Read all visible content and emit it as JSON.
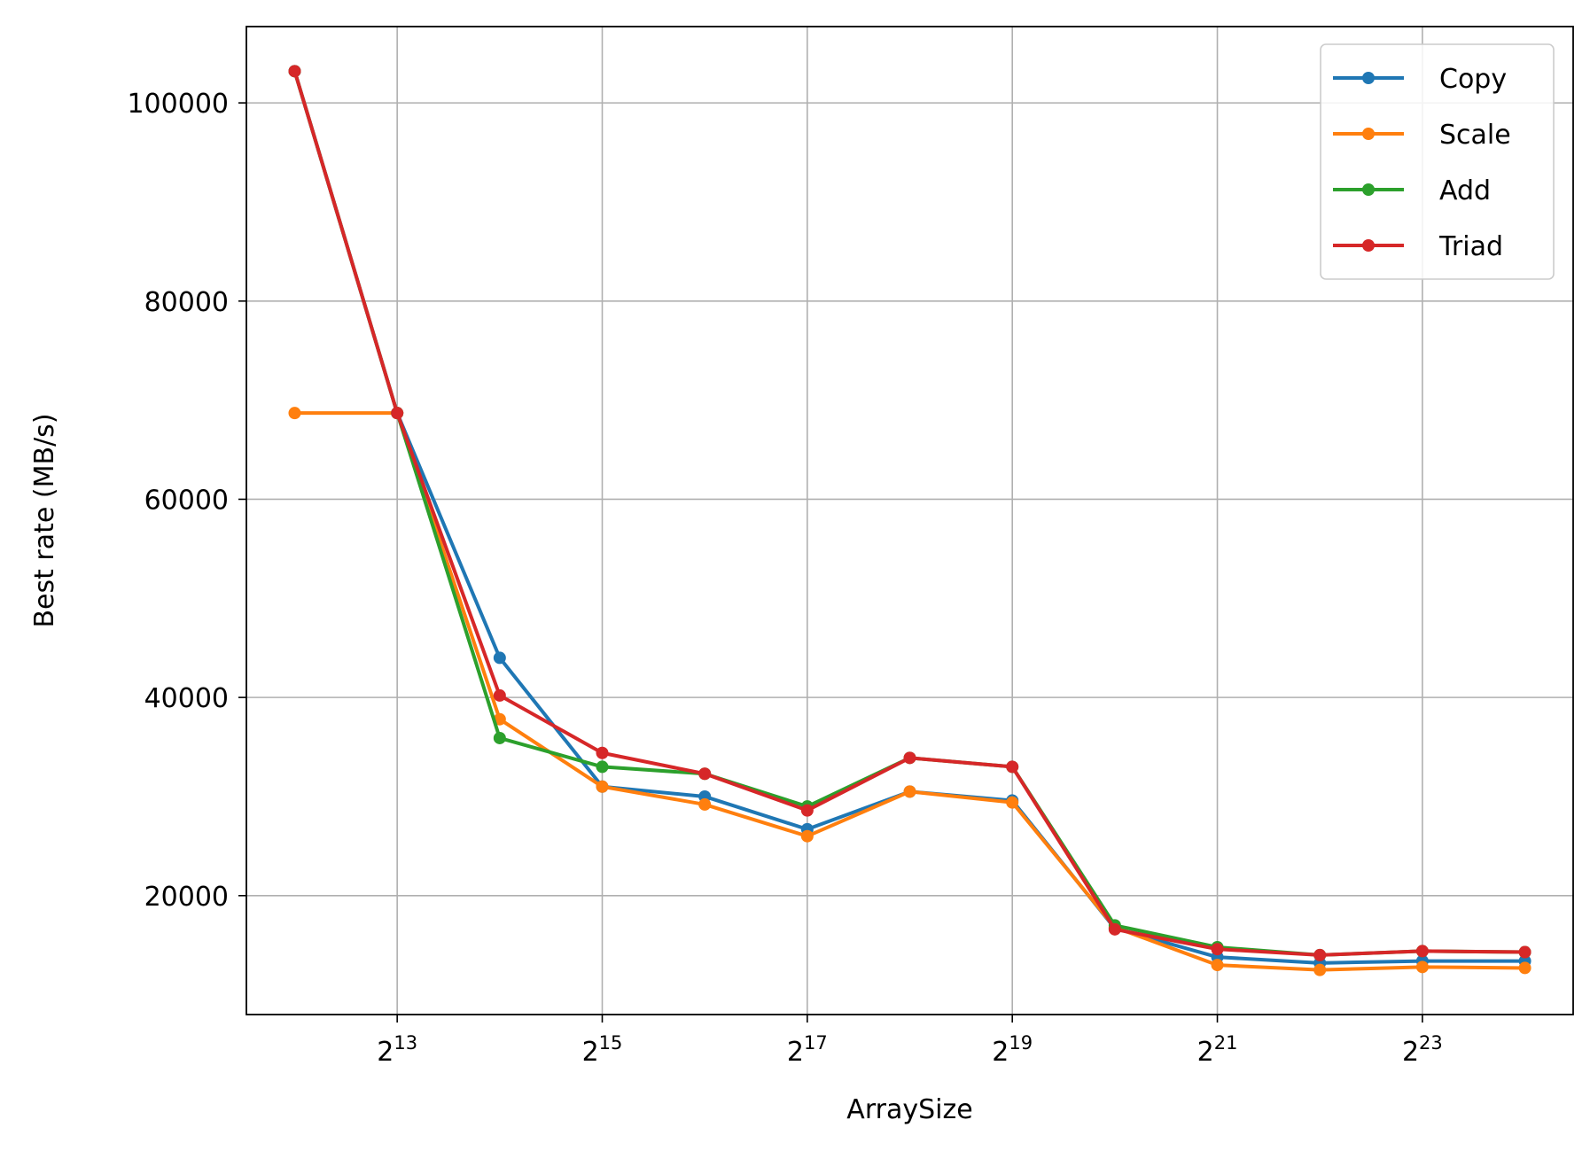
{
  "chart_data": {
    "type": "line",
    "title": "",
    "xlabel": "ArraySize",
    "ylabel": "Best rate (MB/s)",
    "x_scale": "log2",
    "x": [
      4096,
      8192,
      16384,
      32768,
      65536,
      131072,
      262144,
      524288,
      1048576,
      2097152,
      4194304,
      8388608,
      16777216
    ],
    "x_ticks": [
      {
        "value": 8192,
        "base": "2",
        "exp": "13"
      },
      {
        "value": 32768,
        "base": "2",
        "exp": "15"
      },
      {
        "value": 131072,
        "base": "2",
        "exp": "17"
      },
      {
        "value": 524288,
        "base": "2",
        "exp": "19"
      },
      {
        "value": 2097152,
        "base": "2",
        "exp": "21"
      },
      {
        "value": 8388608,
        "base": "2",
        "exp": "23"
      }
    ],
    "xlim": [
      2955,
      23250000
    ],
    "y_ticks": [
      20000,
      40000,
      60000,
      80000,
      100000
    ],
    "y_tick_labels": [
      "20000",
      "40000",
      "60000",
      "80000",
      "100000"
    ],
    "ylim": [
      8000,
      107700
    ],
    "grid": true,
    "legend_position": "top-right",
    "series": [
      {
        "name": "Copy",
        "color": "#1f77b4",
        "values": [
          103200,
          68700,
          44000,
          31000,
          30000,
          26700,
          30500,
          29600,
          16700,
          13800,
          13200,
          13400,
          13400
        ]
      },
      {
        "name": "Scale",
        "color": "#ff7f0e",
        "values": [
          68700,
          68700,
          37800,
          31000,
          29200,
          26000,
          30500,
          29400,
          16800,
          13000,
          12500,
          12800,
          12700
        ]
      },
      {
        "name": "Add",
        "color": "#2ca02c",
        "values": [
          103200,
          68700,
          35900,
          33000,
          32300,
          29000,
          33900,
          33000,
          17000,
          14800,
          14000,
          14400,
          14300
        ]
      },
      {
        "name": "Triad",
        "color": "#d62728",
        "values": [
          103200,
          68700,
          40200,
          34400,
          32300,
          28600,
          33900,
          33000,
          16600,
          14600,
          14000,
          14400,
          14300
        ]
      }
    ]
  }
}
